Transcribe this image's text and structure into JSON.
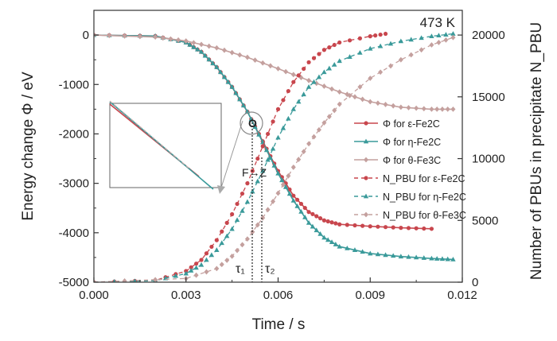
{
  "chart_data": {
    "type": "line",
    "annotation": "473 K",
    "xlabel": "Time / s",
    "ylabel_left": "Energy change Φ / eV",
    "ylabel_right": "Number of PBUs in precipitate N_PBU",
    "xlim": [
      0.0,
      0.012
    ],
    "ylim_left": [
      -5000,
      500
    ],
    "ylim_right": [
      0,
      22000
    ],
    "x_ticks": [
      "0.000",
      "0.003",
      "0.006",
      "0.009",
      "0.012"
    ],
    "y_left_ticks": [
      "0",
      "-1000",
      "-2000",
      "-3000",
      "-4000",
      "-5000"
    ],
    "y_right_ticks": [
      "0",
      "5000",
      "10000",
      "15000",
      "20000"
    ],
    "legend": [
      "Φ for ε-Fe2C",
      "Φ for η-Fe2C",
      "Φ for θ-Fe3C",
      "N_PBU for ε-Fe2C",
      "N_PBU for η-Fe2C",
      "N_PBU for θ-Fe3C"
    ],
    "markers": {
      "point_O": "O",
      "transition": "F→Z",
      "tau1": "τ₁",
      "tau2": "τ₂"
    },
    "series": [
      {
        "key": "phi_eps",
        "axis": "left",
        "style": "solid",
        "marker": "circle",
        "color": "#c8464d",
        "x": [
          0.0,
          0.002,
          0.003,
          0.0035,
          0.004,
          0.0045,
          0.005,
          0.0055,
          0.006,
          0.0065,
          0.007,
          0.0075,
          0.008,
          0.009,
          0.01,
          0.011
        ],
        "y": [
          0,
          -20,
          -150,
          -340,
          -650,
          -1050,
          -1550,
          -2150,
          -2750,
          -3250,
          -3580,
          -3750,
          -3830,
          -3870,
          -3900,
          -3920
        ]
      },
      {
        "key": "phi_eta",
        "axis": "left",
        "style": "solid",
        "marker": "triangle",
        "color": "#3a9a9a",
        "x": [
          0.0,
          0.002,
          0.003,
          0.0035,
          0.004,
          0.0045,
          0.005,
          0.0055,
          0.006,
          0.0065,
          0.007,
          0.0075,
          0.008,
          0.009,
          0.01,
          0.011,
          0.0117
        ],
        "y": [
          0,
          -20,
          -150,
          -340,
          -650,
          -1050,
          -1550,
          -2170,
          -2800,
          -3350,
          -3800,
          -4100,
          -4280,
          -4420,
          -4480,
          -4520,
          -4540
        ]
      },
      {
        "key": "phi_theta",
        "axis": "left",
        "style": "solid",
        "marker": "diamond",
        "color": "#c4a09e",
        "x": [
          0.0,
          0.002,
          0.003,
          0.004,
          0.005,
          0.006,
          0.007,
          0.008,
          0.009,
          0.01,
          0.011,
          0.0117
        ],
        "y": [
          0,
          -40,
          -120,
          -260,
          -450,
          -680,
          -920,
          -1150,
          -1350,
          -1460,
          -1500,
          -1500
        ]
      },
      {
        "key": "n_eps",
        "axis": "right",
        "style": "dashed",
        "marker": "circle",
        "color": "#c8464d",
        "x": [
          0.0,
          0.002,
          0.003,
          0.0035,
          0.004,
          0.0045,
          0.005,
          0.0055,
          0.006,
          0.0065,
          0.007,
          0.0075,
          0.008,
          0.009,
          0.0095
        ],
        "y": [
          0,
          150,
          900,
          1800,
          3400,
          5500,
          8000,
          11000,
          14000,
          16200,
          17800,
          18800,
          19400,
          19900,
          20100
        ]
      },
      {
        "key": "n_eta",
        "axis": "right",
        "style": "dashed",
        "marker": "triangle",
        "color": "#3a9a9a",
        "x": [
          0.0,
          0.002,
          0.003,
          0.0035,
          0.004,
          0.0045,
          0.005,
          0.0055,
          0.006,
          0.0065,
          0.007,
          0.0075,
          0.008,
          0.009,
          0.01,
          0.011,
          0.0117
        ],
        "y": [
          0,
          120,
          700,
          1400,
          2600,
          4300,
          6500,
          9000,
          11700,
          14000,
          15800,
          17000,
          17900,
          18900,
          19500,
          19900,
          20100
        ]
      },
      {
        "key": "n_theta",
        "axis": "right",
        "style": "dashed",
        "marker": "diamond",
        "color": "#c4a09e",
        "x": [
          0.0,
          0.003,
          0.004,
          0.0045,
          0.005,
          0.0055,
          0.006,
          0.0065,
          0.007,
          0.0075,
          0.008,
          0.009,
          0.01,
          0.011,
          0.0117
        ],
        "y": [
          0,
          300,
          1100,
          2100,
          3500,
          5200,
          7200,
          9300,
          11200,
          12900,
          14400,
          16500,
          18000,
          19200,
          19800
        ]
      }
    ]
  }
}
